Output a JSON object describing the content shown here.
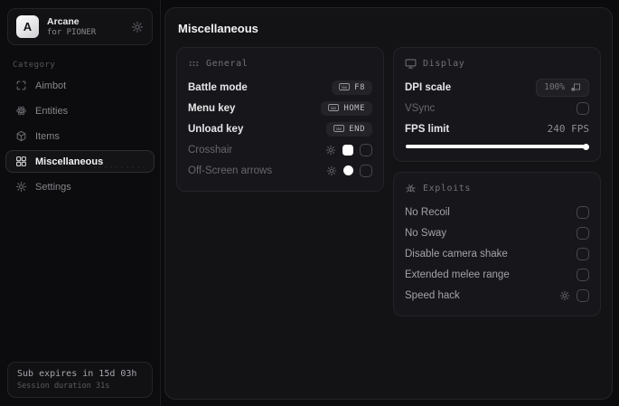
{
  "app": {
    "name": "Arcane",
    "subtitle": "for PIONER",
    "page_title": "Miscellaneous"
  },
  "colors": {
    "background": "#0b0b0d",
    "panel": "#131316",
    "card": "#17171b",
    "border": "#232329",
    "accent": "#ffffff",
    "text_bright": "#e6e6e8",
    "text_dim": "#66666c",
    "swatch_crosshair": "#ffffff",
    "swatch_offscreen": "#ffffff"
  },
  "sidebar": {
    "category_label": "Category",
    "items": [
      {
        "label": "Aimbot",
        "icon": "aimbot-icon",
        "active": false
      },
      {
        "label": "Entities",
        "icon": "entities-icon",
        "active": false
      },
      {
        "label": "Items",
        "icon": "items-icon",
        "active": false
      },
      {
        "label": "Miscellaneous",
        "icon": "miscellaneous-icon",
        "active": true
      },
      {
        "label": "Settings",
        "icon": "settings-icon",
        "active": false
      }
    ],
    "footer": {
      "sub_expires": "Sub expires in 15d 03h",
      "session_duration": "Session duration 31s"
    }
  },
  "general_card": {
    "title": "General",
    "rows": [
      {
        "label": "Battle mode",
        "keybind": "F8"
      },
      {
        "label": "Menu key",
        "keybind": "HOME"
      },
      {
        "label": "Unload key",
        "keybind": "END"
      },
      {
        "label": "Crosshair",
        "swatch": "#ffffff",
        "checked": false
      },
      {
        "label": "Off-Screen arrows",
        "swatch": "#ffffff",
        "checked": false
      }
    ]
  },
  "display_card": {
    "title": "Display",
    "dpi_label": "DPI scale",
    "dpi_value": "100%",
    "vsync_label": "VSync",
    "vsync_checked": false,
    "fps_label": "FPS limit",
    "fps_value": "240 FPS",
    "fps_slider_percent": 100
  },
  "exploits_card": {
    "title": "Exploits",
    "rows": [
      {
        "label": "No Recoil",
        "checked": false
      },
      {
        "label": "No Sway",
        "checked": false
      },
      {
        "label": "Disable camera shake",
        "checked": false
      },
      {
        "label": "Extended melee range",
        "checked": false
      },
      {
        "label": "Speed hack",
        "checked": false,
        "has_gear": true
      }
    ]
  }
}
